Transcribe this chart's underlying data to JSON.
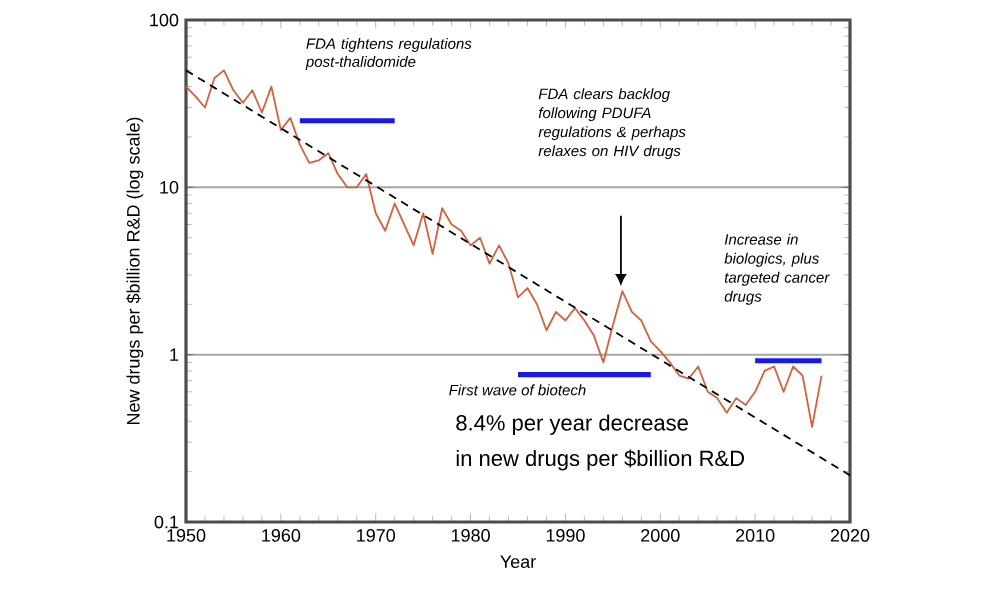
{
  "chart_data": {
    "type": "line",
    "xlabel": "Year",
    "ylabel": "New drugs per $billion R&D (log scale)",
    "xlim": [
      1950,
      2020
    ],
    "ylim": [
      0.1,
      100
    ],
    "log": "y",
    "grid": "y",
    "marker": "none",
    "xticks": [
      1950,
      1960,
      1970,
      1980,
      1990,
      2000,
      2010,
      2020
    ],
    "yticks": [
      0.1,
      1,
      10,
      100
    ],
    "series": [
      {
        "color": "#d4603c",
        "x": [
          1950,
          1951,
          1952,
          1953,
          1954,
          1955,
          1956,
          1957,
          1958,
          1959,
          1960,
          1961,
          1962,
          1963,
          1964,
          1965,
          1966,
          1967,
          1968,
          1969,
          1970,
          1971,
          1972,
          1973,
          1974,
          1975,
          1976,
          1977,
          1978,
          1979,
          1980,
          1981,
          1982,
          1983,
          1984,
          1985,
          1986,
          1987,
          1988,
          1989,
          1990,
          1991,
          1992,
          1993,
          1994,
          1995,
          1996,
          1997,
          1998,
          1999,
          2000,
          2001,
          2002,
          2003,
          2004,
          2005,
          2006,
          2007,
          2008,
          2009,
          2010,
          2011,
          2012,
          2013,
          2014,
          2015,
          2016,
          2017
        ],
        "values": [
          40,
          35,
          30,
          45,
          50,
          38,
          32,
          38,
          28,
          40,
          22,
          26,
          18,
          14,
          14.5,
          16,
          12,
          10,
          10,
          12,
          7,
          5.5,
          8,
          6,
          4.5,
          7,
          4,
          7.5,
          6,
          5.5,
          4.5,
          5,
          3.5,
          4.5,
          3.5,
          2.2,
          2.5,
          2,
          1.4,
          1.8,
          1.6,
          1.9,
          1.6,
          1.3,
          0.9,
          1.5,
          2.4,
          1.8,
          1.6,
          1.2,
          1.05,
          0.9,
          0.75,
          0.72,
          0.85,
          0.6,
          0.55,
          0.45,
          0.55,
          0.5,
          0.6,
          0.8,
          0.85,
          0.6,
          0.85,
          0.75,
          0.37,
          0.75
        ]
      },
      {
        "color": "#000000",
        "line_style": "dashed",
        "x": [
          1950,
          2020
        ],
        "values": [
          50,
          0.19
        ]
      },
      {
        "color": "#1a1ae6",
        "x": [
          1962,
          1972
        ],
        "values": [
          25,
          25
        ]
      },
      {
        "color": "#1a1ae6",
        "x": [
          1985,
          1999
        ],
        "values": [
          0.76,
          0.76
        ]
      },
      {
        "color": "#1a1ae6",
        "x": [
          2010,
          2017
        ],
        "values": [
          0.92,
          0.92
        ]
      }
    ],
    "annotations": [
      "FDA tightens regulations post-thalidomide",
      "FDA clears backlog following PDUFA regulations & perhaps relaxes on HIV drugs",
      "Increase in biologics, plus targeted cancer drugs",
      "First wave of biotech",
      "8.4% per year decrease",
      "in new drugs per $billion R&D"
    ]
  }
}
